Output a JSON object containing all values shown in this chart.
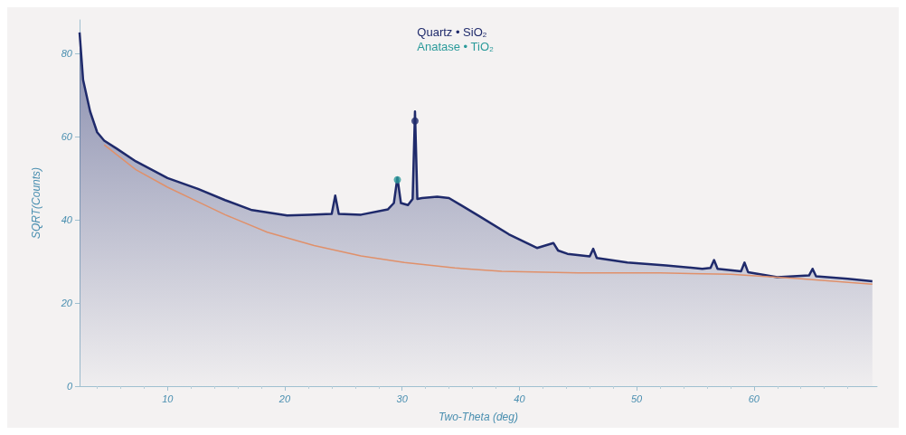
{
  "chart_data": {
    "type": "area",
    "xlabel": "Two-Theta (deg)",
    "ylabel": "SQRT(Counts)",
    "xlim": [
      2.5,
      70.5
    ],
    "ylim": [
      0,
      88
    ],
    "xticks": [
      10,
      20,
      30,
      40,
      50,
      60
    ],
    "yticks": [
      0,
      20,
      40,
      60,
      80
    ],
    "grid": false,
    "legend": "top",
    "series": [
      {
        "color": "#1f2a6b",
        "x": [
          2.5,
          2.8,
          3.4,
          4.0,
          4.6,
          5.7,
          7.3,
          10,
          12.6,
          14.9,
          17.2,
          20.2,
          22.1,
          24.0,
          24.3,
          24.6,
          26.5,
          28.8,
          29.3,
          29.6,
          29.9,
          30.5,
          30.9,
          31.1,
          31.3,
          31.7,
          33.0,
          34.0,
          36.5,
          39.1,
          41.5,
          42.9,
          43.3,
          44.1,
          46.0,
          46.3,
          46.6,
          49.2,
          52.5,
          55.6,
          56.3,
          56.6,
          56.9,
          58.9,
          59.2,
          59.5,
          62.0,
          64.7,
          65.0,
          65.3,
          68.0,
          70.1
        ],
        "values": [
          85,
          73.6,
          66,
          61,
          59,
          57,
          54,
          50,
          47.4,
          44.7,
          42.3,
          41,
          41.2,
          41.4,
          45.8,
          41.4,
          41.2,
          42.5,
          44,
          50.1,
          44,
          43.5,
          45,
          66,
          45,
          45.2,
          45.5,
          45.2,
          41,
          36.5,
          33.2,
          34.4,
          32.6,
          31.8,
          31.2,
          33,
          30.8,
          29.7,
          29,
          28.2,
          28.4,
          30.3,
          28.2,
          27.6,
          29.7,
          27.4,
          26.2,
          26.6,
          28.2,
          26.4,
          25.8,
          25.2
        ]
      },
      {
        "type": "line",
        "color": "#e0906a",
        "x": [
          4.6,
          7.3,
          10,
          12.6,
          14.9,
          18.5,
          22.5,
          26.5,
          30.2,
          34.5,
          38.5,
          45,
          52,
          58,
          64,
          70.1
        ],
        "values": [
          58,
          52,
          47.8,
          44.3,
          41.2,
          37,
          33.8,
          31.3,
          29.7,
          28.4,
          27.6,
          27.2,
          27.2,
          26.9,
          25.8,
          24.5
        ]
      },
      {
        "type": "scatter",
        "marker": "circle",
        "name": "Quartz • SiO$_{2}$",
        "color": "#1f2a6b",
        "x": [
          31.1
        ],
        "values": [
          63.7
        ]
      },
      {
        "type": "scatter",
        "marker": "circle",
        "name": "Anatase • TiO$_{2}$",
        "color": "#2a9a9a",
        "x": [
          29.6
        ],
        "values": [
          49.6
        ]
      }
    ]
  }
}
